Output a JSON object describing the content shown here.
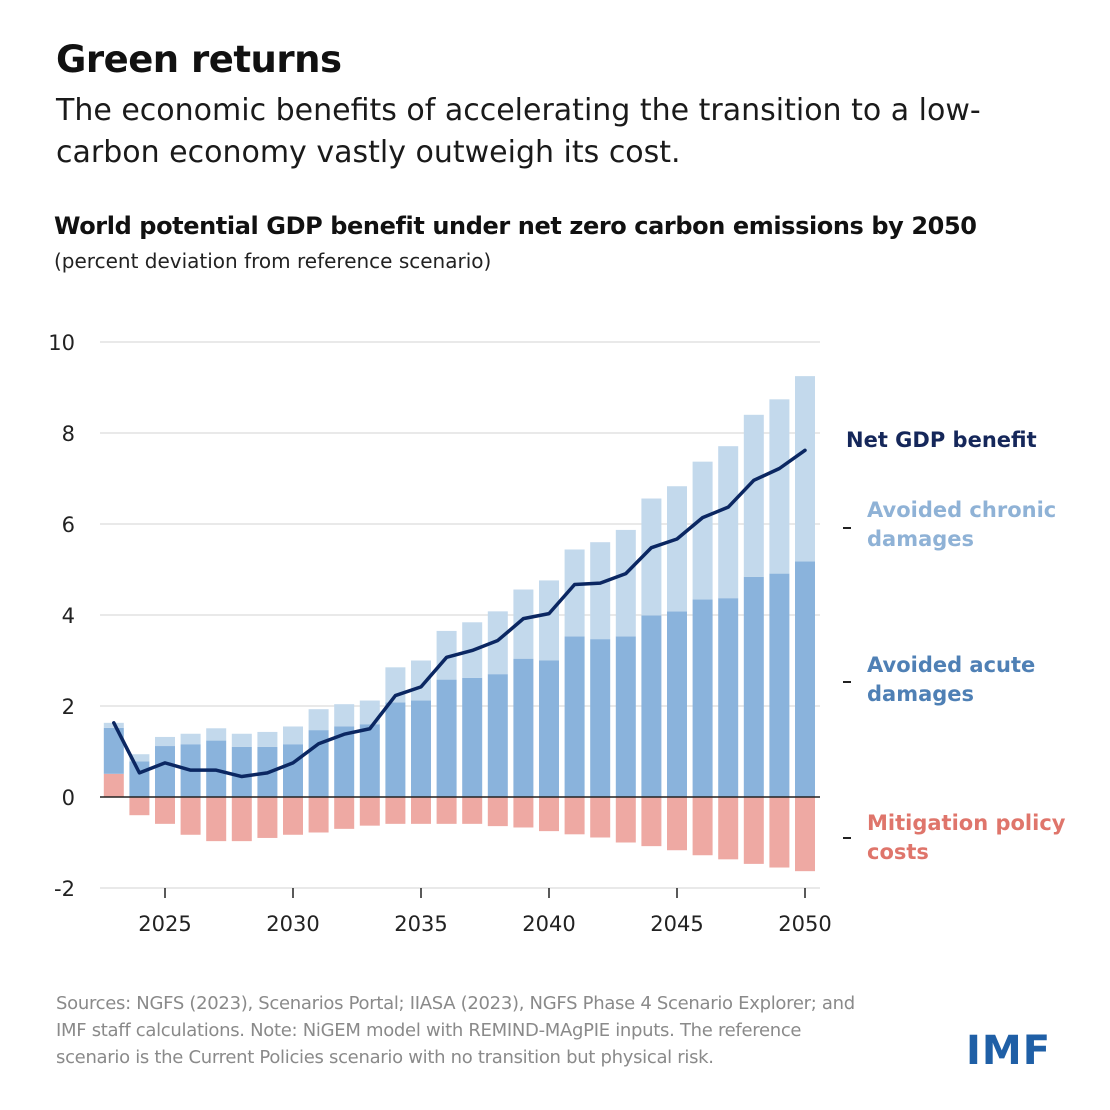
{
  "title": "Green returns",
  "subtitle": "The economic benefits of accelerating the transition to a low-carbon economy vastly outweigh its cost.",
  "chart_data": {
    "type": "bar",
    "title": "World potential GDP benefit under net zero carbon emissions by 2050",
    "subtitle": "(percent deviation from reference scenario)",
    "stacked": true,
    "ylim": [
      -2,
      10
    ],
    "yticks": [
      "10",
      "8",
      "6",
      "4",
      "2",
      "0",
      "-2"
    ],
    "ytick_values": [
      10,
      8,
      6,
      4,
      2,
      0,
      -2
    ],
    "xticks": [
      "2025",
      "2030",
      "2035",
      "2040",
      "2045",
      "2050"
    ],
    "grid": true,
    "legend_placement": "right (direct labels)",
    "x": [
      2023,
      2024,
      2025,
      2026,
      2027,
      2028,
      2029,
      2030,
      2031,
      2032,
      2033,
      2034,
      2035,
      2036,
      2037,
      2038,
      2039,
      2040,
      2041,
      2042,
      2043,
      2044,
      2045,
      2046,
      2047,
      2048,
      2049,
      2050
    ],
    "series": [
      {
        "name": "Mitigation policy costs",
        "kind": "bar",
        "color": "#eea9a3",
        "values": [
          0.51,
          -0.4,
          -0.59,
          -0.83,
          -0.97,
          -0.97,
          -0.9,
          -0.83,
          -0.78,
          -0.7,
          -0.63,
          -0.59,
          -0.59,
          -0.59,
          -0.59,
          -0.64,
          -0.67,
          -0.75,
          -0.82,
          -0.89,
          -1.0,
          -1.08,
          -1.17,
          -1.28,
          -1.37,
          -1.47,
          -1.55,
          -1.63
        ]
      },
      {
        "name": "Avoided acute damages",
        "kind": "bar",
        "color": "#8ab3dc",
        "values": [
          1.01,
          0.78,
          1.12,
          1.16,
          1.24,
          1.1,
          1.1,
          1.16,
          1.47,
          1.55,
          1.6,
          2.08,
          2.12,
          2.58,
          2.62,
          2.7,
          3.04,
          3.0,
          3.53,
          3.47,
          3.53,
          3.99,
          4.08,
          4.34,
          4.37,
          4.84,
          4.91,
          5.18
        ]
      },
      {
        "name": "Avoided chronic damages",
        "kind": "bar",
        "color": "#c3d9ec",
        "values": [
          0.11,
          0.16,
          0.2,
          0.23,
          0.27,
          0.29,
          0.33,
          0.39,
          0.46,
          0.49,
          0.52,
          0.77,
          0.88,
          1.07,
          1.22,
          1.38,
          1.52,
          1.76,
          1.91,
          2.13,
          2.34,
          2.57,
          2.75,
          3.03,
          3.34,
          3.56,
          3.83,
          4.07
        ]
      },
      {
        "name": "Net GDP benefit",
        "kind": "line",
        "color": "#0b2762",
        "values": [
          1.63,
          0.53,
          0.75,
          0.59,
          0.59,
          0.45,
          0.53,
          0.75,
          1.17,
          1.38,
          1.5,
          2.23,
          2.42,
          3.07,
          3.22,
          3.44,
          3.92,
          4.03,
          4.67,
          4.7,
          4.91,
          5.48,
          5.67,
          6.14,
          6.37,
          6.96,
          7.22,
          7.62
        ]
      }
    ],
    "legend": {
      "net": "Net GDP benefit",
      "chronic": "Avoided chronic damages",
      "acute": "Avoided acute damages",
      "mitigation": "Mitigation policy costs"
    },
    "label_colors": {
      "net": "#15275a",
      "chronic": "#8fb2d6",
      "acute": "#4f80b5",
      "mitigation": "#df756b"
    }
  },
  "footnote": "Sources: NGFS (2023), Scenarios Portal; IIASA (2023), NGFS Phase 4 Scenario Explorer; and IMF staff calculations. Note: NiGEM model with REMIND-MAgPIE inputs. The reference scenario is the Current Policies scenario with no transition but physical risk.",
  "logo": "IMF"
}
